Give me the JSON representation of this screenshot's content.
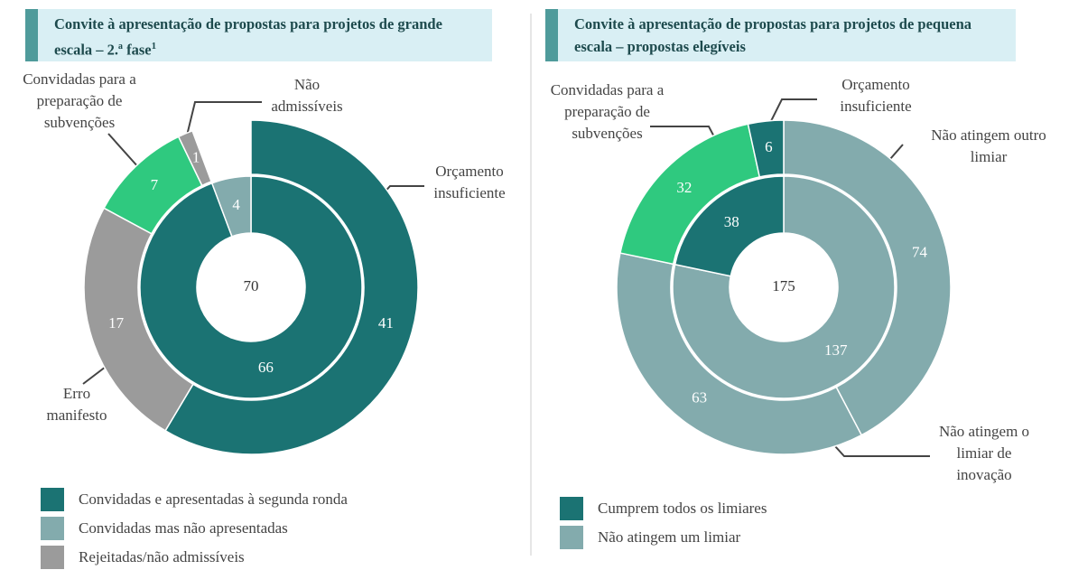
{
  "chart_data": [
    {
      "type": "donut",
      "title": "Convite à apresentação de propostas para projetos de grande escala – 2.ª fase",
      "title_note": "1",
      "total": 70,
      "inner": {
        "values": [
          66,
          4
        ],
        "colors": [
          "#1b7373",
          "#83abad"
        ]
      },
      "outer": {
        "values": [
          41,
          17,
          7,
          1
        ],
        "labels": [
          "Orçamento insuficiente",
          "Erro manifesto",
          "Convidadas para a preparação de subvenções",
          "Não admissíveis"
        ],
        "colors": [
          "#1b7373",
          "#9b9b9b",
          "#2fc97f",
          "#9b9b9b"
        ]
      },
      "legend": [
        {
          "name": "Convidadas e apresentadas à segunda ronda",
          "color": "#1b7373"
        },
        {
          "name": "Convidadas mas não apresentadas",
          "color": "#83abad"
        },
        {
          "name": "Rejeitadas/não admissíveis",
          "color": "#9b9b9b"
        }
      ]
    },
    {
      "type": "donut",
      "title": "Convite à apresentação de propostas para projetos de pequena escala – propostas elegíveis",
      "total": 175,
      "inner": {
        "values": [
          137,
          38
        ],
        "colors": [
          "#83abad",
          "#1b7373"
        ]
      },
      "outer": {
        "values": [
          74,
          63,
          32,
          6
        ],
        "labels": [
          "Não atingem outro limiar",
          "Não atingem o limiar de inovação",
          "Convidadas para a preparação de subvenções",
          "Orçamento insuficiente"
        ],
        "colors": [
          "#83abad",
          "#83abad",
          "#2fc97f",
          "#1b7373"
        ]
      },
      "legend": [
        {
          "name": "Cumprem todos os limiares",
          "color": "#1b7373"
        },
        {
          "name": "Não atingem um limiar",
          "color": "#83abad"
        }
      ]
    }
  ]
}
